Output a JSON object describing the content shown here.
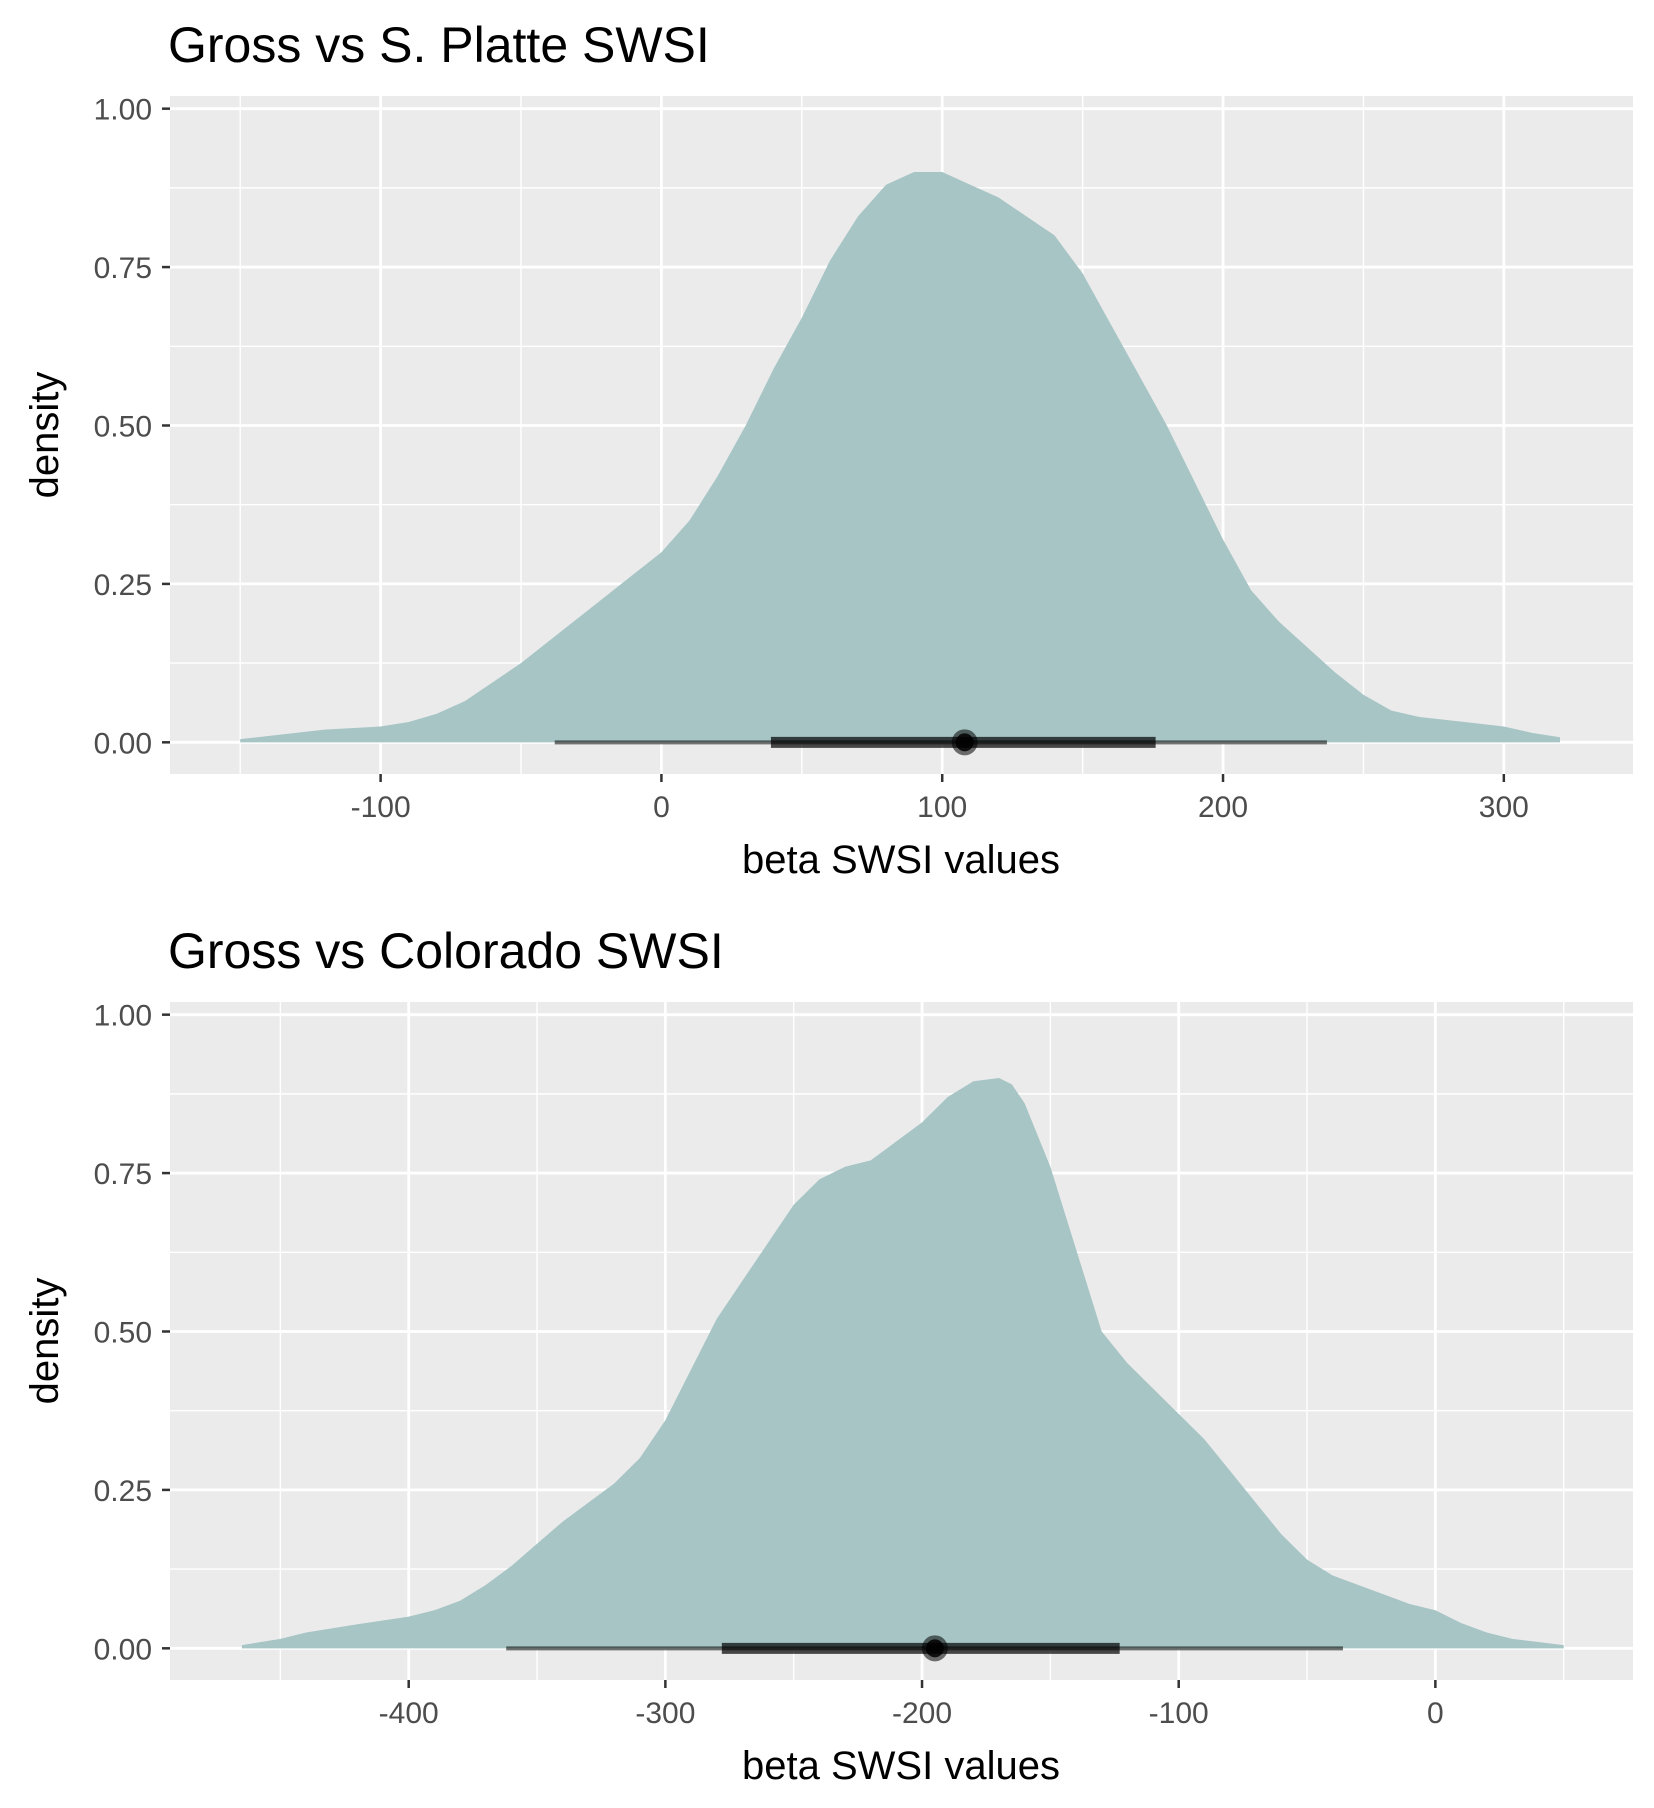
{
  "colors": {
    "panel_bg": "#ebebeb",
    "grid": "#ffffff",
    "fill": "#a8c5c6",
    "interval": "#000000",
    "tick_text": "#4d4d4d"
  },
  "chart_data": [
    {
      "type": "area",
      "title": "Gross vs S. Platte SWSI",
      "xlabel": "beta SWSI values",
      "ylabel": "density",
      "xlim": [
        -175,
        346
      ],
      "ylim": [
        -0.05,
        1.02
      ],
      "xticks": [
        -100,
        0,
        100,
        200,
        300
      ],
      "xtick_labels": [
        "-100",
        "0",
        "100",
        "200",
        "300"
      ],
      "yticks": [
        0,
        0.25,
        0.5,
        0.75,
        1.0
      ],
      "ytick_labels": [
        "0.00",
        "0.25",
        "0.50",
        "0.75",
        "1.00"
      ],
      "grid": true,
      "density": {
        "x": [
          -150,
          -140,
          -120,
          -100,
          -90,
          -80,
          -70,
          -60,
          -50,
          -40,
          -30,
          -20,
          -10,
          0,
          10,
          20,
          30,
          40,
          50,
          60,
          70,
          80,
          90,
          100,
          110,
          120,
          130,
          140,
          150,
          160,
          170,
          180,
          190,
          200,
          210,
          220,
          230,
          240,
          250,
          260,
          270,
          280,
          290,
          300,
          310,
          320
        ],
        "y": [
          0.005,
          0.01,
          0.02,
          0.025,
          0.032,
          0.045,
          0.065,
          0.095,
          0.125,
          0.16,
          0.195,
          0.23,
          0.265,
          0.3,
          0.35,
          0.42,
          0.5,
          0.59,
          0.67,
          0.76,
          0.83,
          0.88,
          0.9,
          0.9,
          0.88,
          0.86,
          0.83,
          0.8,
          0.74,
          0.66,
          0.58,
          0.5,
          0.41,
          0.32,
          0.24,
          0.19,
          0.15,
          0.11,
          0.075,
          0.05,
          0.04,
          0.035,
          0.03,
          0.025,
          0.015,
          0.008
        ]
      },
      "point": 108,
      "interval_thick": [
        39,
        176
      ],
      "interval_thin": [
        -38,
        237
      ]
    },
    {
      "type": "area",
      "title": "Gross vs Colorado SWSI",
      "xlabel": "beta SWSI values",
      "ylabel": "density",
      "xlim": [
        -493,
        77
      ],
      "ylim": [
        -0.05,
        1.02
      ],
      "xticks": [
        -400,
        -300,
        -200,
        -100,
        0
      ],
      "xtick_labels": [
        "-400",
        "-300",
        "-200",
        "-100",
        "0"
      ],
      "yticks": [
        0,
        0.25,
        0.5,
        0.75,
        1.0
      ],
      "ytick_labels": [
        "0.00",
        "0.25",
        "0.50",
        "0.75",
        "1.00"
      ],
      "grid": true,
      "density": {
        "x": [
          -465,
          -450,
          -440,
          -420,
          -400,
          -390,
          -380,
          -370,
          -360,
          -350,
          -340,
          -320,
          -310,
          -300,
          -290,
          -280,
          -270,
          -260,
          -250,
          -240,
          -230,
          -220,
          -210,
          -200,
          -190,
          -180,
          -170,
          -165,
          -160,
          -150,
          -140,
          -130,
          -120,
          -110,
          -100,
          -90,
          -80,
          -70,
          -60,
          -50,
          -40,
          -30,
          -20,
          -10,
          0,
          10,
          20,
          30,
          50
        ],
        "y": [
          0.005,
          0.015,
          0.025,
          0.038,
          0.05,
          0.06,
          0.075,
          0.1,
          0.13,
          0.165,
          0.2,
          0.26,
          0.3,
          0.36,
          0.44,
          0.52,
          0.58,
          0.64,
          0.7,
          0.74,
          0.76,
          0.77,
          0.8,
          0.83,
          0.87,
          0.895,
          0.9,
          0.89,
          0.86,
          0.76,
          0.63,
          0.5,
          0.45,
          0.41,
          0.37,
          0.33,
          0.28,
          0.23,
          0.18,
          0.14,
          0.115,
          0.1,
          0.085,
          0.07,
          0.06,
          0.04,
          0.025,
          0.015,
          0.005
        ]
      },
      "point": -195,
      "interval_thick": [
        -278,
        -123
      ],
      "interval_thin": [
        -362,
        -36
      ]
    }
  ]
}
